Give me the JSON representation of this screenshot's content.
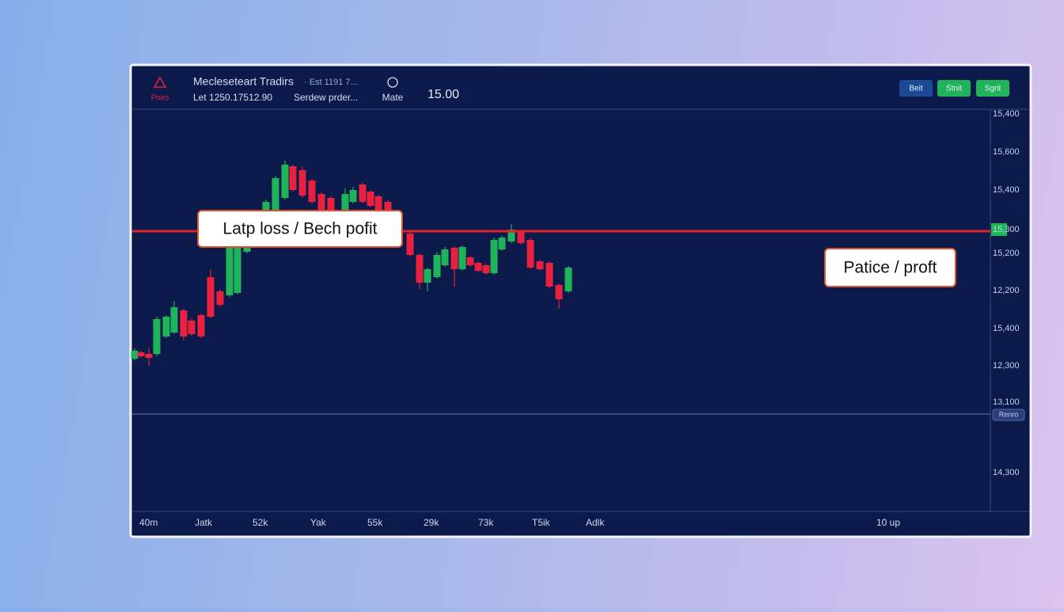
{
  "header": {
    "alert_label": "Poirs",
    "title": "Mecleseteart Tradirs",
    "title_note": "· Est 1191 7...",
    "line1": "Let 1250.17512.90",
    "line2": "Serdew prder...",
    "mode": "Mate",
    "price": "15.00"
  },
  "buttons": [
    "Beit",
    "Stnit",
    "Sgrit"
  ],
  "price_axis": [
    "15,400",
    "15,600",
    "15,400",
    "15,300",
    "15,200",
    "12,200",
    "15,400",
    "12,300",
    "13,100",
    "Renro",
    "14,300"
  ],
  "time_axis": [
    "40m",
    "Jatk",
    "52k",
    "Yak",
    "55k",
    "29k",
    "73k",
    "T5ik",
    "Adlk",
    "10 up"
  ],
  "annotations": [
    "Latp loss / Bech pofit",
    "Patice / proft"
  ]
}
